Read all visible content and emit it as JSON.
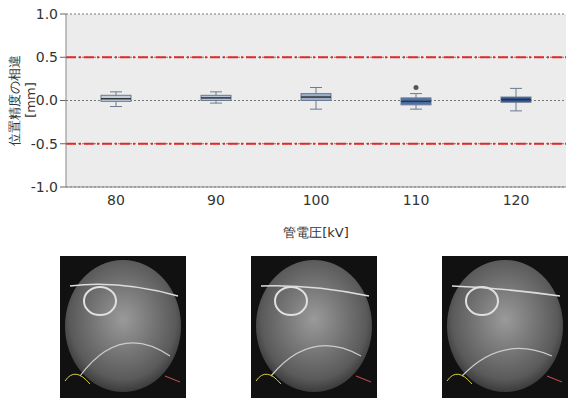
{
  "chart_data": {
    "type": "box",
    "xlabel": "管電圧[kV]",
    "ylabel": "位置精度の相違\n[mm]",
    "categories": [
      "80",
      "90",
      "100",
      "110",
      "120"
    ],
    "boxes": [
      {
        "min": -0.07,
        "q1": -0.01,
        "median": 0.02,
        "q3": 0.06,
        "max": 0.1,
        "outliers": []
      },
      {
        "min": -0.03,
        "q1": 0.0,
        "median": 0.03,
        "q3": 0.06,
        "max": 0.1,
        "outliers": []
      },
      {
        "min": -0.1,
        "q1": 0.0,
        "median": 0.04,
        "q3": 0.08,
        "max": 0.15,
        "outliers": []
      },
      {
        "min": -0.1,
        "q1": -0.05,
        "median": -0.01,
        "q3": 0.03,
        "max": 0.08,
        "outliers": [
          0.15
        ]
      },
      {
        "min": -0.12,
        "q1": -0.02,
        "median": 0.01,
        "q3": 0.04,
        "max": 0.14,
        "outliers": []
      }
    ],
    "colors": [
      "#c3cedf",
      "#b4c3d8",
      "#9cafc9",
      "#4a72b0",
      "#2e5597"
    ],
    "thresholds": [
      -0.5,
      0.5
    ],
    "ylim": [
      -1.0,
      1.0
    ],
    "yticks": [
      {
        "value": -1,
        "label": "-1.0"
      },
      -0.5,
      {
        "value": 0,
        "label": "0.0"
      },
      0.5,
      {
        "value": 1,
        "label": "1.0"
      }
    ],
    "grid": true
  }
}
